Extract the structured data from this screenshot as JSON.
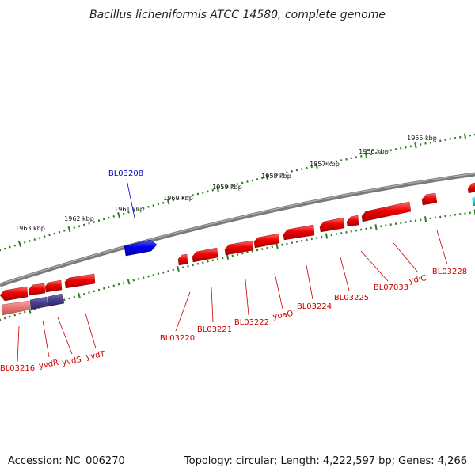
{
  "title": "Bacillus licheniformis ATCC 14580, complete genome",
  "footer": {
    "accession": "Accession: NC_006270",
    "summary": "Topology: circular; Length: 4,222,597 bp; Genes: 4,266"
  },
  "colors": {
    "background": "#ffffff",
    "backbone": "#7a7a7a",
    "tick": "#2e7d1f",
    "gene_red": "#ee0000",
    "gene_blue": "#0000ee",
    "gene_purple": "#4a3f8c",
    "gene_pink": "#e87878",
    "gene_cyan": "#22ccdd",
    "label_red": "#cc0000",
    "label_blue": "#0000cc"
  },
  "kbp_labels": [
    "1963 kbp",
    "1962 kbp",
    "1961 kbp",
    "1960 kbp",
    "1959 kbp",
    "1958 kbp",
    "1957 kbp",
    "1956 kbp",
    "1955 kbp"
  ],
  "outer_genes": [
    {
      "name": "BL03208",
      "strand": "forward",
      "color": "blue"
    }
  ],
  "inner_genes": [
    {
      "name": "BL03216",
      "strand": "reverse",
      "color": "red"
    },
    {
      "name": "yvdR",
      "strand": "reverse",
      "color": "pink"
    },
    {
      "name": "yvdS",
      "strand": "reverse",
      "color": "purple"
    },
    {
      "name": "yvdT",
      "strand": "reverse",
      "color": "purple"
    },
    {
      "name": "BL03220",
      "strand": "reverse",
      "color": "red"
    },
    {
      "name": "BL03221",
      "strand": "reverse",
      "color": "red"
    },
    {
      "name": "BL03222",
      "strand": "reverse",
      "color": "red"
    },
    {
      "name": "yoaO",
      "strand": "reverse",
      "color": "red"
    },
    {
      "name": "BL03224",
      "strand": "reverse",
      "color": "red"
    },
    {
      "name": "BL03225",
      "strand": "reverse",
      "color": "red"
    },
    {
      "name": "BL07033",
      "strand": "reverse",
      "color": "red"
    },
    {
      "name": "ydjC",
      "strand": "reverse",
      "color": "red"
    },
    {
      "name": "BL03228",
      "strand": "reverse",
      "color": "red"
    }
  ]
}
